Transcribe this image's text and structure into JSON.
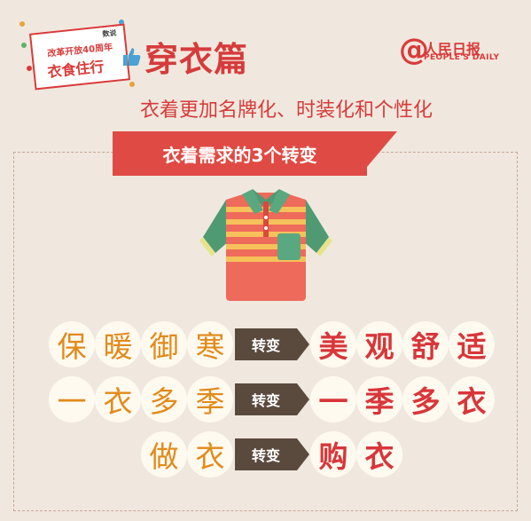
{
  "badge": {
    "tag": "数说",
    "line1": "改革开放40周年",
    "line2": "衣食住行",
    "thumb_icon": "thumbs-up-icon"
  },
  "title": "穿衣篇",
  "subtitle": "衣着更加名牌化、时装化和个性化",
  "logo": {
    "name": "人民日报",
    "english": "PEOPLE'S DAILY",
    "at_symbol": "@"
  },
  "banner": "衣着需求的3个转变",
  "shirt_icon": "polo-shirt-icon",
  "change_label": "转变",
  "rows": [
    {
      "from": [
        "保",
        "暖",
        "御",
        "寒"
      ],
      "to": [
        "美",
        "观",
        "舒",
        "适"
      ]
    },
    {
      "from": [
        "一",
        "衣",
        "多",
        "季"
      ],
      "to": [
        "一",
        "季",
        "多",
        "衣"
      ]
    },
    {
      "from": [
        "做",
        "衣"
      ],
      "to": [
        "购",
        "衣"
      ]
    }
  ],
  "colors": {
    "background": "#f0e8de",
    "accent_red": "#d63b3b",
    "orange_text": "#e28a1a",
    "arrow": "#5a4a3e"
  }
}
